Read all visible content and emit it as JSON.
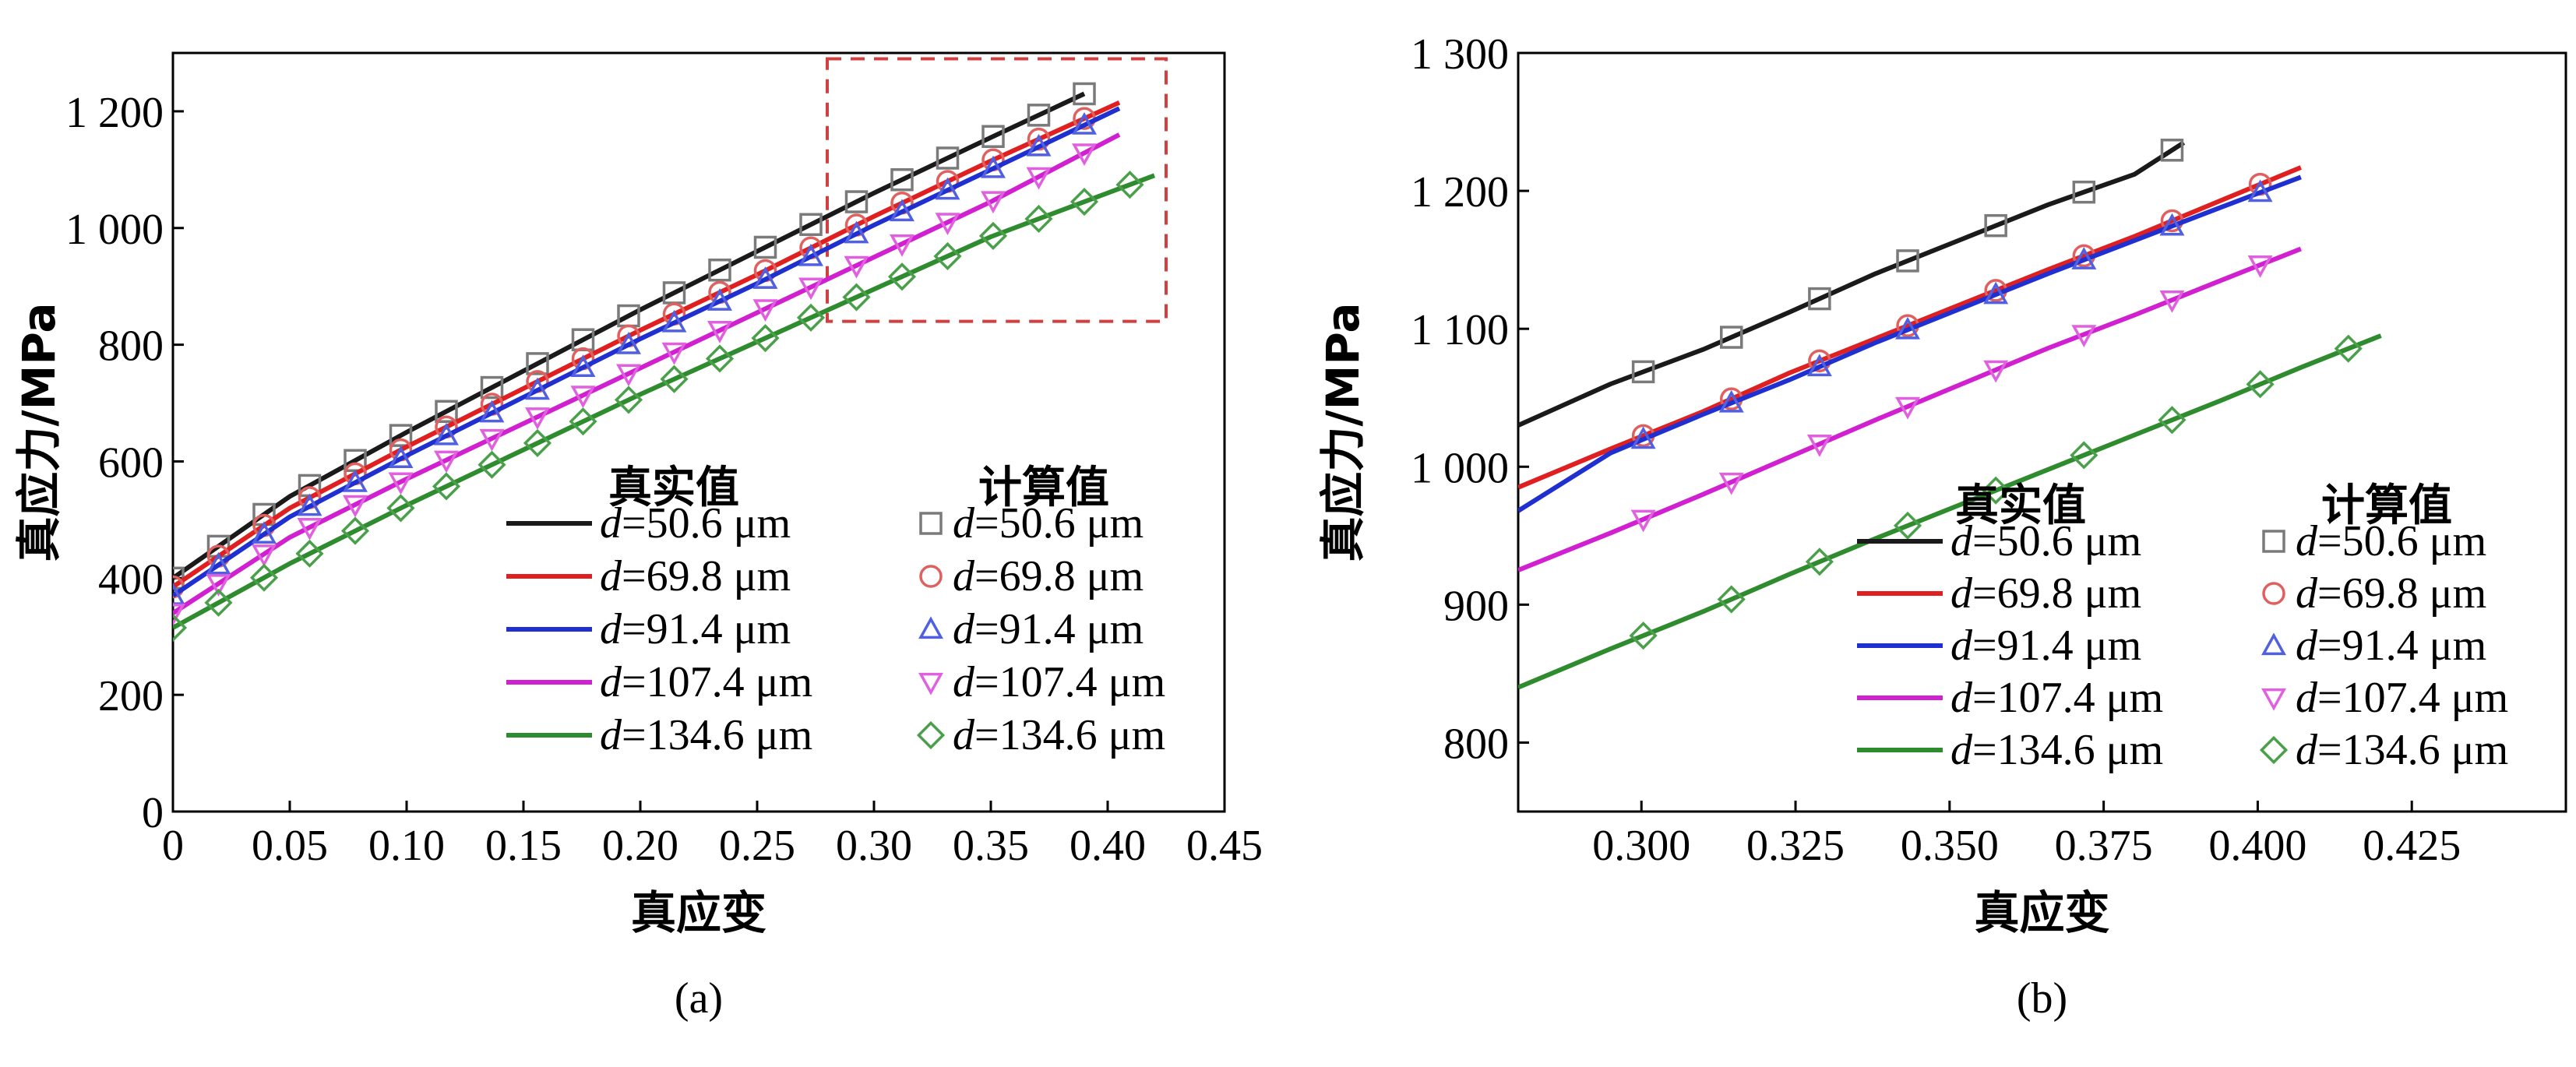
{
  "chart_data": [
    {
      "type": "line",
      "panel_label": "(a)",
      "xlabel": "真应变",
      "ylabel": "真应力/MPa",
      "xlim": [
        0,
        0.45
      ],
      "ylim": [
        0,
        1300
      ],
      "x_ticks": [
        0,
        0.05,
        0.1,
        0.15,
        0.2,
        0.25,
        0.3,
        0.35,
        0.4,
        0.45
      ],
      "x_tick_labels": [
        "0",
        "0.05",
        "0.10",
        "0.15",
        "0.20",
        "0.25",
        "0.30",
        "0.35",
        "0.40",
        "0.45"
      ],
      "y_ticks": [
        0,
        200,
        400,
        600,
        800,
        1000,
        1200
      ],
      "y_tick_labels": [
        "0",
        "200",
        "400",
        "600",
        "800",
        "1 000",
        "1 200"
      ],
      "legend_headers": {
        "measured": "真实值",
        "calculated": "计算值"
      },
      "legend_position": "bottom-right",
      "highlight_box": {
        "x": [
          0.28,
          0.425
        ],
        "y": [
          840,
          1290
        ]
      },
      "series": [
        {
          "name": "d=50.6 μm",
          "label_italic": "d",
          "label_rest": "=50.6 μm",
          "color": "#1a1a1a",
          "marker_color": "#7a7a7a",
          "marker": "square",
          "x": [
            0,
            0.05,
            0.1,
            0.15,
            0.2,
            0.25,
            0.3,
            0.35,
            0.39
          ],
          "y": [
            400,
            540,
            650,
            755,
            860,
            960,
            1060,
            1155,
            1230
          ]
        },
        {
          "name": "d=69.8 μm",
          "label_italic": "d",
          "label_rest": "=69.8 μm",
          "color": "#e02020",
          "marker_color": "#e06060",
          "marker": "circle",
          "x": [
            0,
            0.05,
            0.1,
            0.15,
            0.2,
            0.25,
            0.3,
            0.35,
            0.405
          ],
          "y": [
            385,
            520,
            625,
            725,
            825,
            920,
            1020,
            1115,
            1215
          ]
        },
        {
          "name": "d=91.4 μm",
          "label_italic": "d",
          "label_rest": "=91.4 μm",
          "color": "#2030d0",
          "marker_color": "#5060e0",
          "marker": "triangle-up",
          "x": [
            0,
            0.05,
            0.1,
            0.15,
            0.2,
            0.25,
            0.3,
            0.35,
            0.405
          ],
          "y": [
            370,
            505,
            610,
            710,
            810,
            905,
            1005,
            1100,
            1205
          ]
        },
        {
          "name": "d=107.4 μm",
          "label_italic": "d",
          "label_rest": "=107.4 μm",
          "color": "#d020d0",
          "marker_color": "#e060e0",
          "marker": "triangle-down",
          "x": [
            0,
            0.05,
            0.1,
            0.15,
            0.2,
            0.25,
            0.3,
            0.35,
            0.405
          ],
          "y": [
            340,
            470,
            570,
            665,
            760,
            855,
            950,
            1045,
            1160
          ]
        },
        {
          "name": "d=134.6 μm",
          "label_italic": "d",
          "label_rest": "=134.6 μm",
          "color": "#2e8b2e",
          "marker_color": "#4aa04a",
          "marker": "diamond",
          "x": [
            0,
            0.05,
            0.1,
            0.15,
            0.2,
            0.25,
            0.3,
            0.35,
            0.42
          ],
          "y": [
            315,
            425,
            525,
            620,
            715,
            805,
            895,
            985,
            1090
          ]
        }
      ]
    },
    {
      "type": "line",
      "panel_label": "(b)",
      "xlabel": "真应变",
      "ylabel": "真应力/MPa",
      "xlim": [
        0.28,
        0.45
      ],
      "ylim": [
        750,
        1300
      ],
      "x_ticks": [
        0.3,
        0.325,
        0.35,
        0.375,
        0.4,
        0.425
      ],
      "x_tick_labels": [
        "0.300",
        "0.325",
        "0.350",
        "0.375",
        "0.400",
        "0.425"
      ],
      "y_ticks": [
        800,
        900,
        1000,
        1100,
        1200,
        1300
      ],
      "y_tick_labels": [
        "800",
        "900",
        "1 000",
        "1 100",
        "1 200",
        "1 300"
      ],
      "legend_headers": {
        "measured": "真实值",
        "calculated": "计算值"
      },
      "legend_position": "bottom-right",
      "series": [
        {
          "name": "d=50.6 μm",
          "label_italic": "d",
          "label_rest": "=50.6 μm",
          "color": "#1a1a1a",
          "marker_color": "#7a7a7a",
          "marker": "square",
          "x": [
            0.28,
            0.295,
            0.31,
            0.324,
            0.338,
            0.352,
            0.366,
            0.38,
            0.388
          ],
          "y": [
            1030,
            1060,
            1085,
            1112,
            1140,
            1165,
            1190,
            1212,
            1235
          ]
        },
        {
          "name": "d=69.8 μm",
          "label_italic": "d",
          "label_rest": "=69.8 μm",
          "color": "#e02020",
          "marker_color": "#e06060",
          "marker": "circle",
          "x": [
            0.28,
            0.295,
            0.31,
            0.324,
            0.338,
            0.352,
            0.366,
            0.38,
            0.394,
            0.407
          ],
          "y": [
            985,
            1013,
            1040,
            1068,
            1093,
            1118,
            1143,
            1167,
            1193,
            1217
          ]
        },
        {
          "name": "d=91.4 μm",
          "label_italic": "d",
          "label_rest": "=91.4 μm",
          "color": "#2030d0",
          "marker_color": "#5060e0",
          "marker": "triangle-up",
          "x": [
            0.28,
            0.295,
            0.31,
            0.324,
            0.338,
            0.352,
            0.366,
            0.38,
            0.394,
            0.407
          ],
          "y": [
            968,
            1010,
            1038,
            1063,
            1090,
            1115,
            1140,
            1164,
            1188,
            1210
          ]
        },
        {
          "name": "d=107.4 μm",
          "label_italic": "d",
          "label_rest": "=107.4 μm",
          "color": "#d020d0",
          "marker_color": "#e060e0",
          "marker": "triangle-down",
          "x": [
            0.28,
            0.295,
            0.31,
            0.324,
            0.338,
            0.352,
            0.366,
            0.38,
            0.394,
            0.407
          ],
          "y": [
            925,
            952,
            980,
            1007,
            1034,
            1060,
            1086,
            1110,
            1135,
            1158
          ]
        },
        {
          "name": "d=134.6 μm",
          "label_italic": "d",
          "label_rest": "=134.6 μm",
          "color": "#2e8b2e",
          "marker_color": "#4aa04a",
          "marker": "diamond",
          "x": [
            0.28,
            0.295,
            0.31,
            0.324,
            0.338,
            0.352,
            0.366,
            0.38,
            0.394,
            0.407,
            0.42
          ],
          "y": [
            840,
            868,
            895,
            922,
            948,
            973,
            998,
            1023,
            1048,
            1072,
            1095
          ]
        }
      ]
    }
  ]
}
